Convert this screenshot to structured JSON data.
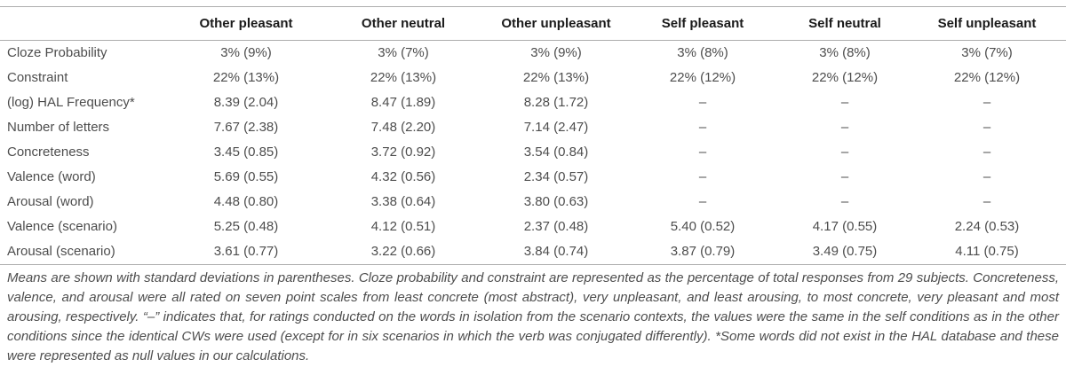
{
  "table": {
    "columns": [
      "Other pleasant",
      "Other neutral",
      "Other unpleasant",
      "Self pleasant",
      "Self neutral",
      "Self unpleasant"
    ],
    "rows": [
      {
        "label": "Cloze Probability",
        "values": [
          "3% (9%)",
          "3% (7%)",
          "3% (9%)",
          "3% (8%)",
          "3% (8%)",
          "3% (7%)"
        ]
      },
      {
        "label": "Constraint",
        "values": [
          "22% (13%)",
          "22% (13%)",
          "22% (13%)",
          "22% (12%)",
          "22% (12%)",
          "22% (12%)"
        ]
      },
      {
        "label": "(log) HAL Frequency*",
        "values": [
          "8.39 (2.04)",
          "8.47 (1.89)",
          "8.28 (1.72)",
          "–",
          "–",
          "–"
        ]
      },
      {
        "label": "Number of letters",
        "values": [
          "7.67 (2.38)",
          "7.48 (2.20)",
          "7.14 (2.47)",
          "–",
          "–",
          "–"
        ]
      },
      {
        "label": "Concreteness",
        "values": [
          "3.45 (0.85)",
          "3.72 (0.92)",
          "3.54 (0.84)",
          "–",
          "–",
          "–"
        ]
      },
      {
        "label": "Valence (word)",
        "values": [
          "5.69 (0.55)",
          "4.32 (0.56)",
          "2.34 (0.57)",
          "–",
          "–",
          "–"
        ]
      },
      {
        "label": "Arousal (word)",
        "values": [
          "4.48 (0.80)",
          "3.38 (0.64)",
          "3.80 (0.63)",
          "–",
          "–",
          "–"
        ]
      },
      {
        "label": "Valence (scenario)",
        "values": [
          "5.25 (0.48)",
          "4.12 (0.51)",
          "2.37 (0.48)",
          "5.40 (0.52)",
          "4.17 (0.55)",
          "2.24 (0.53)"
        ]
      },
      {
        "label": "Arousal (scenario)",
        "values": [
          "3.61 (0.77)",
          "3.22 (0.66)",
          "3.84 (0.74)",
          "3.87 (0.79)",
          "3.49 (0.75)",
          "4.11 (0.75)"
        ]
      }
    ]
  },
  "footnote": "Means are shown with standard deviations in parentheses. Cloze probability and constraint are represented as the percentage of total responses from 29 subjects. Concreteness, valence, and arousal were all rated on seven point scales from least concrete (most abstract), very unpleasant, and least arousing, to most concrete, very pleasant and most arousing, respectively. “–” indicates that, for ratings conducted on the words in isolation from the scenario contexts, the values were the same in the self conditions as in the other conditions since the identical CWs were used (except for in six scenarios in which the verb was conjugated differently). *Some words did not exist in the HAL database and these were represented as null values in our calculations.",
  "colors": {
    "rule": "#adadad",
    "header_text": "#1a1a1a",
    "body_text": "#4d4d4d",
    "footnote_text": "#4d4d4d",
    "background": "#ffffff"
  }
}
